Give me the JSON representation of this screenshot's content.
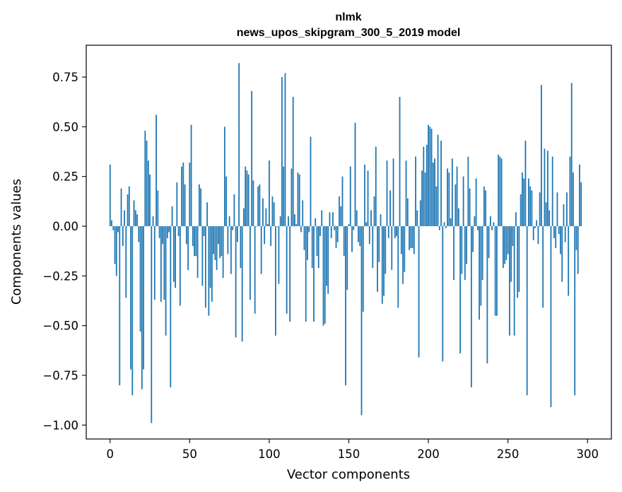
{
  "chart_data": {
    "type": "bar",
    "title_line1": "nlmk",
    "title_line2": "news_upos_skipgram_300_5_2019 model",
    "xlabel": "Vector components",
    "ylabel": "Components values",
    "xlim": [
      -15,
      315
    ],
    "ylim": [
      -1.07,
      0.91
    ],
    "xticks": [
      0,
      50,
      100,
      150,
      200,
      250,
      300
    ],
    "xtick_labels": [
      "0",
      "50",
      "100",
      "150",
      "200",
      "250",
      "300"
    ],
    "yticks": [
      0.75,
      0.5,
      0.25,
      0.0,
      -0.25,
      -0.5,
      -0.75,
      -1.0
    ],
    "ytick_labels": [
      "0.75",
      "0.50",
      "0.25",
      "0.00",
      "−0.25",
      "−0.50",
      "−0.75",
      "−1.00"
    ],
    "color": "#1f77b4",
    "values": [
      0.31,
      0.03,
      -0.02,
      -0.19,
      -0.25,
      -0.03,
      -0.8,
      0.19,
      -0.1,
      0.08,
      -0.36,
      0.16,
      0.2,
      -0.72,
      -0.85,
      0.13,
      0.08,
      0.06,
      -0.08,
      -0.53,
      -0.82,
      -0.72,
      0.48,
      0.43,
      0.33,
      0.26,
      -0.99,
      0.05,
      -0.37,
      0.56,
      0.18,
      -0.06,
      -0.38,
      -0.09,
      -0.37,
      -0.55,
      -0.06,
      -0.03,
      -0.81,
      0.1,
      -0.28,
      -0.31,
      0.22,
      -0.05,
      -0.4,
      0.3,
      0.32,
      0.21,
      -0.09,
      -0.22,
      0.32,
      0.51,
      -0.1,
      -0.15,
      -0.15,
      -0.26,
      0.21,
      0.19,
      -0.3,
      -0.05,
      -0.41,
      0.12,
      -0.45,
      -0.31,
      -0.38,
      -0.14,
      -0.17,
      -0.22,
      -0.09,
      -0.16,
      -0.15,
      -0.26,
      0.5,
      0.25,
      -0.14,
      0.05,
      -0.24,
      -0.02,
      0.16,
      -0.56,
      -0.08,
      0.82,
      -0.21,
      -0.58,
      0.09,
      0.3,
      0.28,
      0.26,
      -0.37,
      0.68,
      0.23,
      -0.44,
      0.0,
      0.2,
      0.21,
      -0.24,
      0.14,
      -0.09,
      0.09,
      0.01,
      0.33,
      -0.1,
      0.15,
      0.12,
      -0.55,
      0.0,
      -0.29,
      0.05,
      0.75,
      0.3,
      0.77,
      -0.44,
      0.05,
      -0.48,
      0.29,
      0.65,
      0.06,
      0.01,
      0.27,
      0.26,
      -0.03,
      0.13,
      -0.12,
      -0.48,
      -0.17,
      -0.03,
      0.45,
      -0.21,
      -0.48,
      0.04,
      -0.15,
      -0.21,
      -0.05,
      0.08,
      -0.5,
      -0.49,
      -0.3,
      -0.34,
      0.07,
      -0.06,
      0.07,
      -0.02,
      -0.11,
      -0.08,
      0.15,
      0.1,
      0.25,
      -0.15,
      -0.8,
      -0.32,
      0.01,
      0.3,
      -0.13,
      -0.02,
      0.52,
      0.08,
      -0.08,
      -0.1,
      -0.95,
      -0.43,
      0.31,
      0.02,
      0.28,
      -0.09,
      0.08,
      -0.21,
      0.15,
      0.4,
      -0.33,
      -0.18,
      0.06,
      -0.39,
      -0.35,
      -0.24,
      0.33,
      -0.06,
      0.18,
      -0.22,
      0.34,
      -0.06,
      -0.05,
      -0.41,
      0.65,
      -0.14,
      -0.29,
      -0.23,
      0.33,
      0.14,
      -0.12,
      -0.11,
      -0.11,
      -0.14,
      0.35,
      0.08,
      -0.66,
      0.13,
      0.28,
      0.4,
      0.27,
      0.41,
      0.51,
      0.5,
      0.49,
      0.32,
      0.34,
      0.2,
      0.46,
      -0.02,
      0.43,
      -0.68,
      0.02,
      -0.01,
      0.29,
      0.27,
      0.04,
      0.34,
      -0.27,
      0.21,
      0.3,
      0.09,
      -0.64,
      -0.24,
      0.25,
      -0.27,
      -0.19,
      0.35,
      0.19,
      -0.81,
      -0.13,
      0.05,
      0.24,
      -0.02,
      -0.47,
      -0.4,
      -0.27,
      0.2,
      0.18,
      -0.69,
      -0.16,
      0.05,
      -0.02,
      0.02,
      -0.45,
      -0.45,
      0.36,
      0.35,
      0.34,
      -0.21,
      -0.19,
      -0.17,
      -0.14,
      -0.55,
      -0.28,
      -0.1,
      -0.55,
      0.07,
      -0.36,
      -0.33,
      0.16,
      0.27,
      0.24,
      0.43,
      -0.85,
      0.24,
      0.2,
      0.18,
      -0.07,
      -0.01,
      0.03,
      -0.09,
      0.17,
      0.71,
      -0.41,
      0.39,
      0.12,
      0.38,
      0.08,
      -0.91,
      0.35,
      -0.06,
      -0.11,
      0.17,
      -0.04,
      -0.14,
      -0.28,
      0.11,
      -0.08,
      0.17,
      -0.35,
      0.35,
      0.72,
      0.27,
      -0.85,
      -0.12,
      -0.24,
      0.31,
      0.22
    ]
  }
}
